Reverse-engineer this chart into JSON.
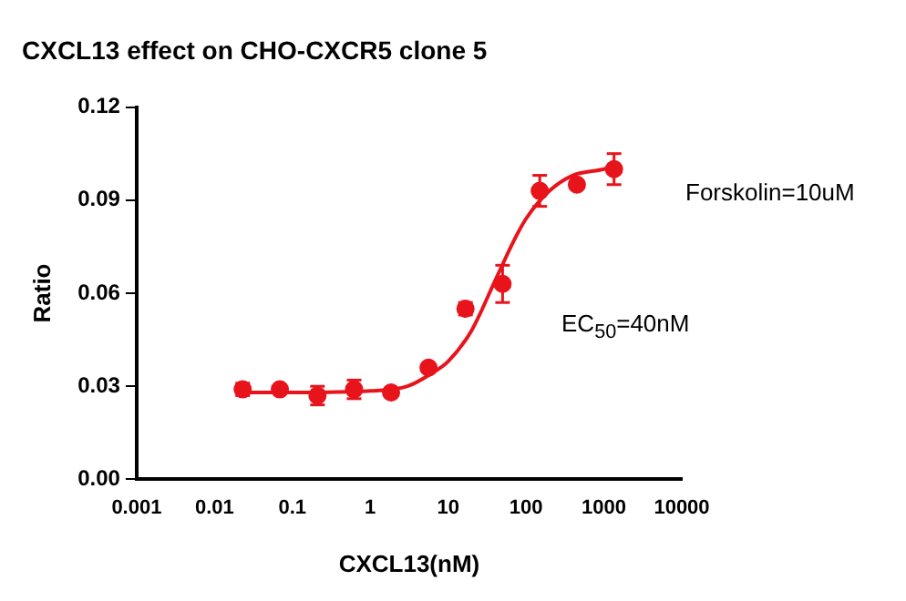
{
  "chart_data": {
    "type": "scatter",
    "title": "CXCL13 effect on CHO-CXCR5 clone 5",
    "xlabel": "CXCL13(nM)",
    "ylabel": "Ratio",
    "log": "x",
    "grid": false,
    "legend": false,
    "xlim": [
      0.001,
      10000
    ],
    "xticks": [
      0.001,
      0.01,
      0.1,
      1,
      10,
      100,
      1000,
      10000
    ],
    "ylim": [
      0,
      0.12
    ],
    "yticks": [
      {
        "value": 0,
        "label": "0.00"
      },
      {
        "value": 0.03,
        "label": "0.03"
      },
      {
        "value": 0.06,
        "label": "0.06"
      },
      {
        "value": 0.09,
        "label": "0.09"
      },
      {
        "value": 0.12,
        "label": "0.12"
      }
    ],
    "annotations": [
      "Forskolin=10uM",
      "EC$_{50}$=40nM"
    ],
    "series": [
      {
        "type": "scatter",
        "color": "#e8141c",
        "marker": "circle",
        "x": [
          0.023,
          0.069,
          0.21,
          0.62,
          1.85,
          5.6,
          16.7,
          50,
          150,
          450,
          1350
        ],
        "values": [
          0.029,
          0.029,
          0.027,
          0.029,
          0.028,
          0.036,
          0.055,
          0.063,
          0.093,
          0.095,
          0.1
        ],
        "errors": [
          0.002,
          null,
          0.003,
          0.003,
          null,
          null,
          0.002,
          0.006,
          0.005,
          null,
          0.005
        ]
      },
      {
        "type": "line",
        "color": "#e8141c",
        "marker": "none",
        "line_style": "solid",
        "x": [
          0.023,
          0.1,
          1,
          3,
          6,
          10,
          20,
          40,
          70,
          100,
          200,
          400,
          1000,
          1350
        ],
        "values": [
          0.028,
          0.028,
          0.0285,
          0.03,
          0.034,
          0.038,
          0.048,
          0.064,
          0.077,
          0.084,
          0.093,
          0.098,
          0.1,
          0.101
        ]
      }
    ]
  }
}
